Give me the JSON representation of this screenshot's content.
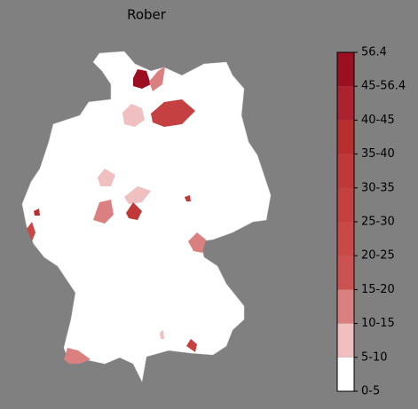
{
  "map": {
    "title": "Rober",
    "legend": {
      "labels": [
        "0-5",
        "5-10",
        "10-15",
        "15-20",
        "20-25",
        "25-30",
        "30-35",
        "35-40",
        "40-45",
        "45-56.4",
        "56.4"
      ],
      "colors": [
        "#ffffff",
        "#f0c0c0",
        "#db8080",
        "#cc5252",
        "#c94848",
        "#c54040",
        "#c03838",
        "#b82e2e",
        "#ad2231",
        "#9c0f22"
      ]
    }
  }
}
